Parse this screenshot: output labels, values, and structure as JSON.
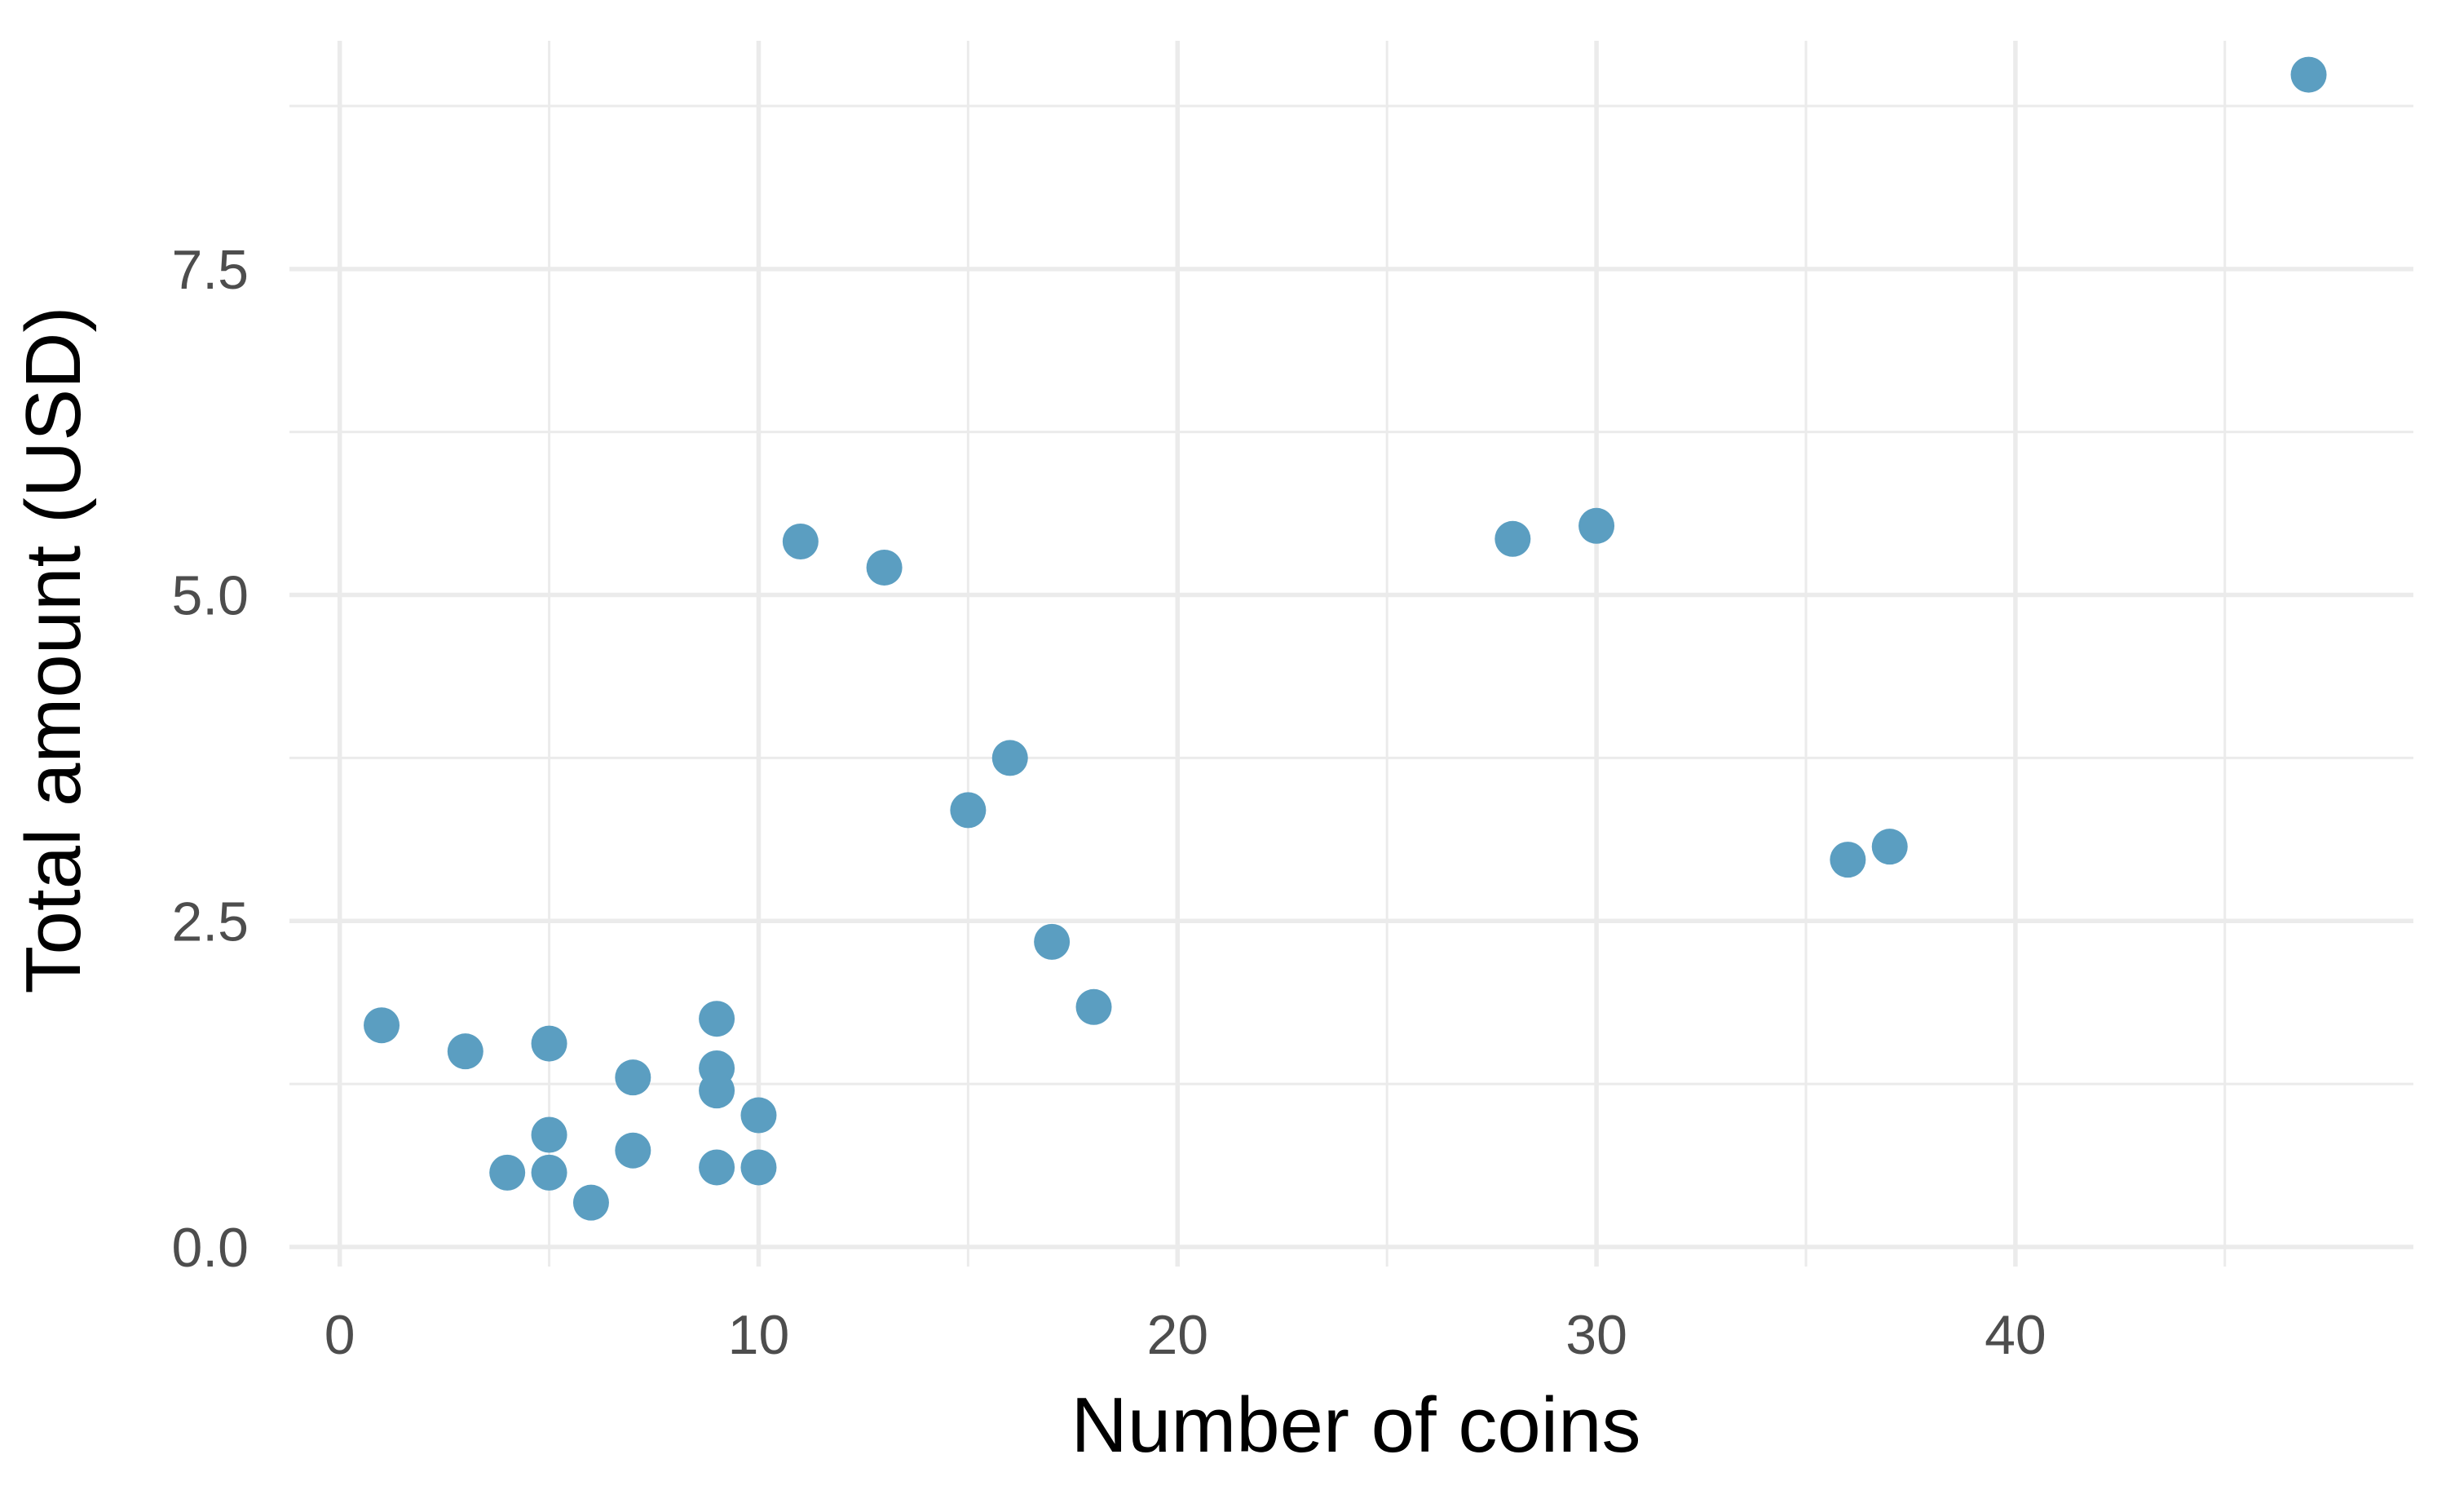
{
  "chart_data": {
    "type": "scatter",
    "title": "",
    "xlabel": "Number of coins",
    "ylabel": "Total amount (USD)",
    "xlim": [
      -1.2,
      49.5
    ],
    "ylim": [
      -0.15,
      9.25
    ],
    "x_ticks": [
      0,
      10,
      20,
      30,
      40
    ],
    "x_tick_labels": [
      "0",
      "10",
      "20",
      "30",
      "40"
    ],
    "x_minor_ticks": [
      5,
      15,
      25,
      35,
      45
    ],
    "y_ticks": [
      0,
      2.5,
      5,
      7.5
    ],
    "y_tick_labels": [
      "0.0",
      "2.5",
      "5.0",
      "7.5"
    ],
    "y_minor_ticks": [
      1.25,
      3.75,
      6.25,
      8.75
    ],
    "grid": true,
    "legend": "none",
    "point_color": "#5b9ec1",
    "x": [
      1,
      3,
      4,
      5,
      5,
      5,
      6,
      7,
      7,
      9,
      9,
      9,
      9,
      10,
      10,
      11,
      13,
      15,
      16,
      17,
      18,
      28,
      30,
      36,
      37,
      47
    ],
    "y": [
      1.7,
      1.5,
      0.57,
      1.56,
      0.86,
      0.57,
      0.34,
      1.3,
      0.74,
      1.75,
      1.37,
      1.2,
      0.61,
      1.01,
      0.61,
      5.41,
      5.21,
      3.35,
      3.75,
      2.34,
      1.84,
      5.43,
      5.53,
      2.97,
      3.07,
      8.99
    ]
  }
}
